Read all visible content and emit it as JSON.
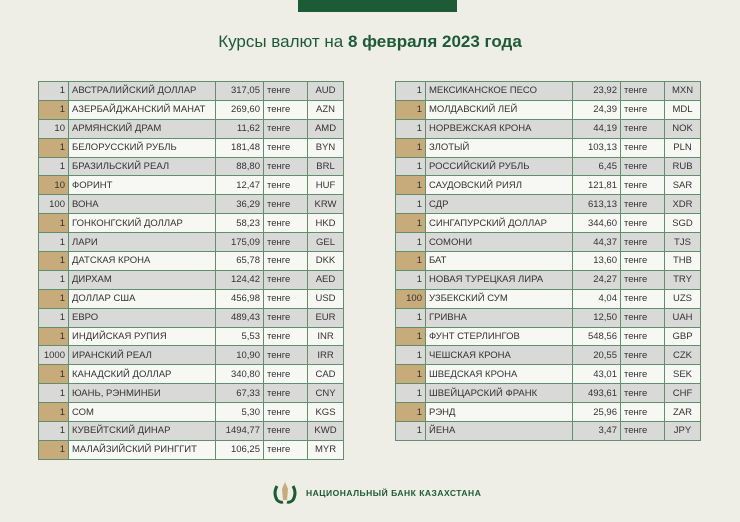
{
  "header": {
    "title_prefix": "Курсы валют на ",
    "title_date": "8 февраля 2023 года"
  },
  "unit": "тенге",
  "left_table": [
    [
      "1",
      "АВСТРАЛИЙСКИЙ ДОЛЛАР",
      "317,05",
      "AUD"
    ],
    [
      "1",
      "АЗЕРБАЙДЖАНСКИЙ МАНАТ",
      "269,60",
      "AZN"
    ],
    [
      "10",
      "АРМЯНСКИЙ  ДРАМ",
      "11,62",
      "AMD"
    ],
    [
      "1",
      "БЕЛОРУССКИЙ РУБЛЬ",
      "181,48",
      "BYN"
    ],
    [
      "1",
      "БРАЗИЛЬСКИЙ РЕАЛ",
      "88,80",
      "BRL"
    ],
    [
      "10",
      "ФОРИНТ",
      "12,47",
      "HUF"
    ],
    [
      "100",
      "ВОНА",
      "36,29",
      "KRW"
    ],
    [
      "1",
      "ГОНКОНГСКИЙ ДОЛЛАР",
      "58,23",
      "HKD"
    ],
    [
      "1",
      "ЛАРИ",
      "175,09",
      "GEL"
    ],
    [
      "1",
      "ДАТСКАЯ КРОНА",
      "65,78",
      "DKK"
    ],
    [
      "1",
      "ДИРХАМ",
      "124,42",
      "AED"
    ],
    [
      "1",
      "ДОЛЛАР США",
      "456,98",
      "USD"
    ],
    [
      "1",
      "ЕВРО",
      "489,43",
      "EUR"
    ],
    [
      "1",
      "ИНДИЙСКАЯ РУПИЯ",
      "5,53",
      "INR"
    ],
    [
      "1000",
      "ИРАНСКИЙ РЕАЛ",
      "10,90",
      "IRR"
    ],
    [
      "1",
      "КАНАДСКИЙ ДОЛЛАР",
      "340,80",
      "CAD"
    ],
    [
      "1",
      "ЮАНЬ, РЭНМИНБИ",
      "67,33",
      "CNY"
    ],
    [
      "1",
      "СОМ",
      "5,30",
      "KGS"
    ],
    [
      "1",
      "КУВЕЙТСКИЙ ДИНАР",
      "1494,77",
      "KWD"
    ],
    [
      "1",
      "МАЛАЙЗИЙСКИЙ РИНГГИТ",
      "106,25",
      "MYR"
    ]
  ],
  "right_table": [
    [
      "1",
      "МЕКСИКАНСКОЕ ПЕСО",
      "23,92",
      "MXN"
    ],
    [
      "1",
      "МОЛДАВСКИЙ ЛЕЙ",
      "24,39",
      "MDL"
    ],
    [
      "1",
      "НОРВЕЖСКАЯ КРОНА",
      "44,19",
      "NOK"
    ],
    [
      "1",
      "ЗЛОТЫЙ",
      "103,13",
      "PLN"
    ],
    [
      "1",
      "РОССИЙСКИЙ РУБЛЬ",
      "6,45",
      "RUB"
    ],
    [
      "1",
      "САУДОВСКИЙ РИЯЛ",
      "121,81",
      "SAR"
    ],
    [
      "1",
      "СДР",
      "613,13",
      "XDR"
    ],
    [
      "1",
      "СИНГАПУРСКИЙ ДОЛЛАР",
      "344,60",
      "SGD"
    ],
    [
      "1",
      "СОМОНИ",
      "44,37",
      "TJS"
    ],
    [
      "1",
      "БАТ",
      "13,60",
      "THB"
    ],
    [
      "1",
      "НОВАЯ ТУРЕЦКАЯ ЛИРА",
      "24,27",
      "TRY"
    ],
    [
      "100",
      "УЗБЕКСКИЙ СУМ",
      "4,04",
      "UZS"
    ],
    [
      "1",
      "ГРИВНА",
      "12,50",
      "UAH"
    ],
    [
      "1",
      "ФУНТ СТЕРЛИНГОВ",
      "548,56",
      "GBP"
    ],
    [
      "1",
      "ЧЕШСКАЯ КРОНА",
      "20,55",
      "CZK"
    ],
    [
      "1",
      "ШВЕДСКАЯ КРОНА",
      "43,01",
      "SEK"
    ],
    [
      "1",
      "ШВЕЙЦАРСКИЙ ФРАНК",
      "493,61",
      "CHF"
    ],
    [
      "1",
      "РЭНД",
      "25,96",
      "ZAR"
    ],
    [
      "1",
      "ЙЕНА",
      "3,47",
      "JPY"
    ]
  ],
  "footer": {
    "bank_name": "НАЦИОНАЛЬНЫЙ БАНК КАЗАХСТАНА"
  },
  "colors": {
    "brand_green": "#1d5b36",
    "accent_tan": "#c8ab7a"
  }
}
